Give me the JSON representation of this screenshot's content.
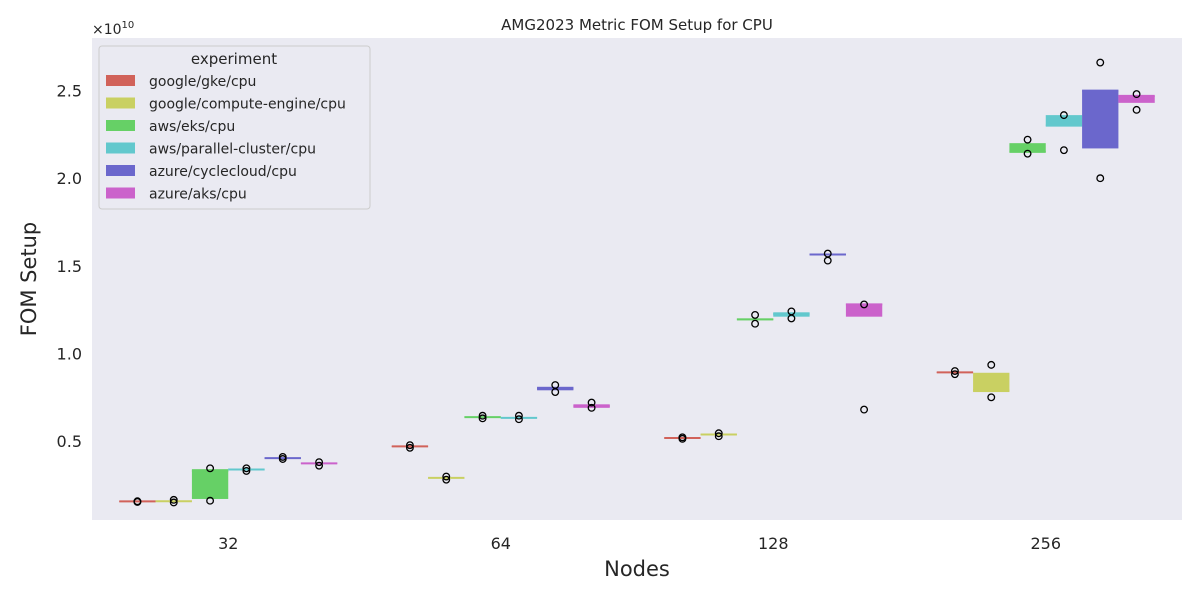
{
  "chart_data": {
    "type": "box",
    "title": "AMG2023 Metric FOM Setup for CPU",
    "xlabel": "Nodes",
    "ylabel": "FOM Setup",
    "y_offset_label": "×10",
    "y_offset_exponent": "10",
    "y_scale": 10000000000,
    "categories": [
      "32",
      "64",
      "128",
      "256"
    ],
    "ylim": [
      0.05,
      2.8
    ],
    "yticks": [
      0.5,
      1.0,
      1.5,
      2.0,
      2.5
    ],
    "ytick_labels": [
      "0.5",
      "1.0",
      "1.5",
      "2.0",
      "2.5"
    ],
    "grid": false,
    "legend": {
      "title": "experiment",
      "placement": "top-left"
    },
    "series": [
      {
        "name": "google/gke/cpu",
        "color": "#d1625a",
        "values": [
          {
            "category": "32",
            "q1": 0.155,
            "median": 0.156,
            "q3": 0.157,
            "points": [
              0.153,
              0.157
            ]
          },
          {
            "category": "64",
            "q1": 0.468,
            "median": 0.47,
            "q3": 0.472,
            "points": [
              0.462,
              0.477
            ]
          },
          {
            "category": "128",
            "q1": 0.517,
            "median": 0.518,
            "q3": 0.52,
            "points": [
              0.513,
              0.522
            ]
          },
          {
            "category": "256",
            "q1": 0.889,
            "median": 0.892,
            "q3": 0.895,
            "points": [
              0.882,
              0.9
            ]
          }
        ]
      },
      {
        "name": "google/compute-engine/cpu",
        "color": "#c9d062",
        "values": [
          {
            "category": "32",
            "q1": 0.155,
            "median": 0.157,
            "q3": 0.16,
            "points": [
              0.15,
              0.165
            ]
          },
          {
            "category": "64",
            "q1": 0.288,
            "median": 0.29,
            "q3": 0.292,
            "points": [
              0.28,
              0.298
            ]
          },
          {
            "category": "128",
            "q1": 0.535,
            "median": 0.538,
            "q3": 0.54,
            "points": [
              0.528,
              0.545
            ]
          },
          {
            "category": "256",
            "q1": 0.78,
            "median": 0.79,
            "q3": 0.89,
            "points": [
              0.75,
              0.935
            ]
          }
        ]
      },
      {
        "name": "aws/eks/cpu",
        "color": "#66d066",
        "values": [
          {
            "category": "32",
            "q1": 0.17,
            "median": 0.33,
            "q3": 0.34,
            "points": [
              0.16,
              0.345
            ]
          },
          {
            "category": "64",
            "q1": 0.635,
            "median": 0.637,
            "q3": 0.64,
            "points": [
              0.63,
              0.645
            ]
          },
          {
            "category": "128",
            "q1": 1.19,
            "median": 1.195,
            "q3": 1.2,
            "points": [
              1.17,
              1.22
            ]
          },
          {
            "category": "256",
            "q1": 2.15,
            "median": 2.15,
            "q3": 2.2,
            "points": [
              2.14,
              2.22
            ]
          }
        ]
      },
      {
        "name": "aws/parallel-cluster/cpu",
        "color": "#62c8cd",
        "values": [
          {
            "category": "32",
            "q1": 0.333,
            "median": 0.338,
            "q3": 0.343,
            "points": [
              0.33,
              0.345
            ]
          },
          {
            "category": "64",
            "q1": 0.63,
            "median": 0.633,
            "q3": 0.637,
            "points": [
              0.625,
              0.645
            ]
          },
          {
            "category": "128",
            "q1": 1.21,
            "median": 1.225,
            "q3": 1.235,
            "points": [
              1.2,
              1.24
            ]
          },
          {
            "category": "256",
            "q1": 2.3,
            "median": 2.3,
            "q3": 2.36,
            "points": [
              2.16,
              2.36
            ]
          }
        ]
      },
      {
        "name": "azure/cyclecloud/cpu",
        "color": "#6b67cc",
        "values": [
          {
            "category": "32",
            "q1": 0.4,
            "median": 0.403,
            "q3": 0.406,
            "points": [
              0.398,
              0.41
            ]
          },
          {
            "category": "64",
            "q1": 0.79,
            "median": 0.8,
            "q3": 0.81,
            "points": [
              0.78,
              0.82
            ]
          },
          {
            "category": "128",
            "q1": 1.56,
            "median": 1.565,
            "q3": 1.57,
            "points": [
              1.53,
              1.57
            ]
          },
          {
            "category": "256",
            "q1": 2.17,
            "median": 2.5,
            "q3": 2.5,
            "points": [
              2.0,
              2.66
            ]
          }
        ]
      },
      {
        "name": "azure/aks/cpu",
        "color": "#cb62cb",
        "values": [
          {
            "category": "32",
            "q1": 0.37,
            "median": 0.373,
            "q3": 0.378,
            "points": [
              0.36,
              0.38
            ]
          },
          {
            "category": "64",
            "q1": 0.69,
            "median": 0.7,
            "q3": 0.71,
            "points": [
              0.69,
              0.72
            ]
          },
          {
            "category": "128",
            "q1": 1.21,
            "median": 1.28,
            "q3": 1.285,
            "points": [
              0.68,
              1.28
            ]
          },
          {
            "category": "256",
            "q1": 2.43,
            "median": 2.47,
            "q3": 2.47,
            "points": [
              2.39,
              2.48
            ]
          }
        ]
      }
    ]
  }
}
